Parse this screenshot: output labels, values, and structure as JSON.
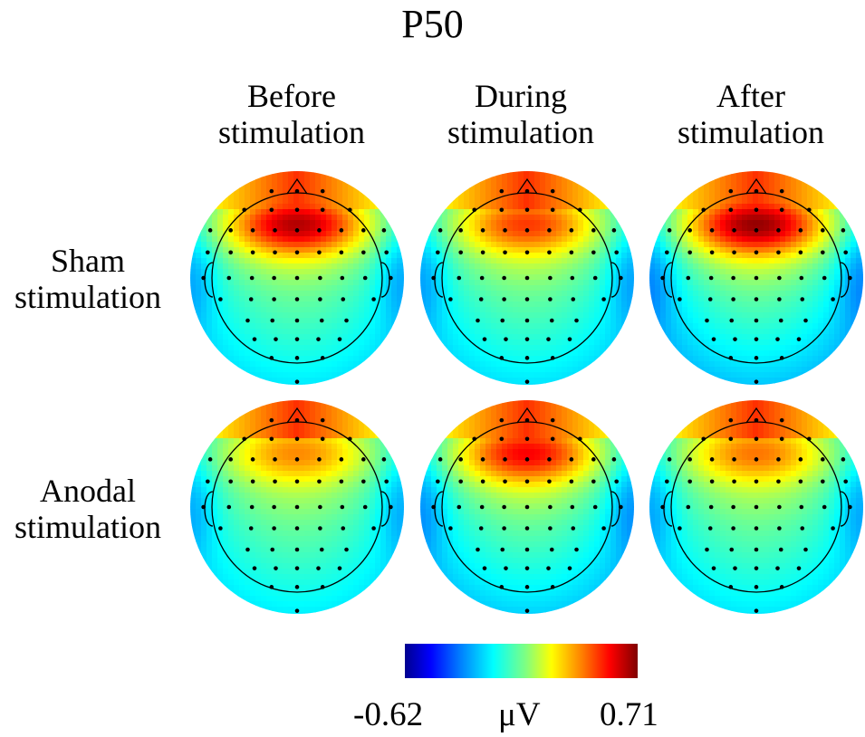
{
  "title": "P50",
  "columns": [
    {
      "line1": "Before",
      "line2": "stimulation"
    },
    {
      "line1": "During",
      "line2": "stimulation"
    },
    {
      "line1": "After",
      "line2": "stimulation"
    }
  ],
  "rows": [
    {
      "line1": "Sham",
      "line2": "stimulation"
    },
    {
      "line1": "Anodal",
      "line2": "stimulation"
    }
  ],
  "colorbar": {
    "min_label": "-0.62",
    "unit": "μV",
    "max_label": "0.71",
    "colors": [
      "#00008f",
      "#0000ff",
      "#0080ff",
      "#00ffff",
      "#80ff80",
      "#ffff00",
      "#ff8000",
      "#ff0000",
      "#800000"
    ]
  },
  "maps": [
    {
      "row": "Sham",
      "column": "Before",
      "frontal_intensity": 0.95,
      "posterior_min": 0.26
    },
    {
      "row": "Sham",
      "column": "During",
      "frontal_intensity": 0.82,
      "posterior_min": 0.25
    },
    {
      "row": "Sham",
      "column": "After",
      "frontal_intensity": 0.98,
      "posterior_min": 0.2
    },
    {
      "row": "Anodal",
      "column": "Before",
      "frontal_intensity": 0.74,
      "posterior_min": 0.27
    },
    {
      "row": "Anodal",
      "column": "During",
      "frontal_intensity": 0.88,
      "posterior_min": 0.22
    },
    {
      "row": "Anodal",
      "column": "After",
      "frontal_intensity": 0.76,
      "posterior_min": 0.26
    }
  ]
}
